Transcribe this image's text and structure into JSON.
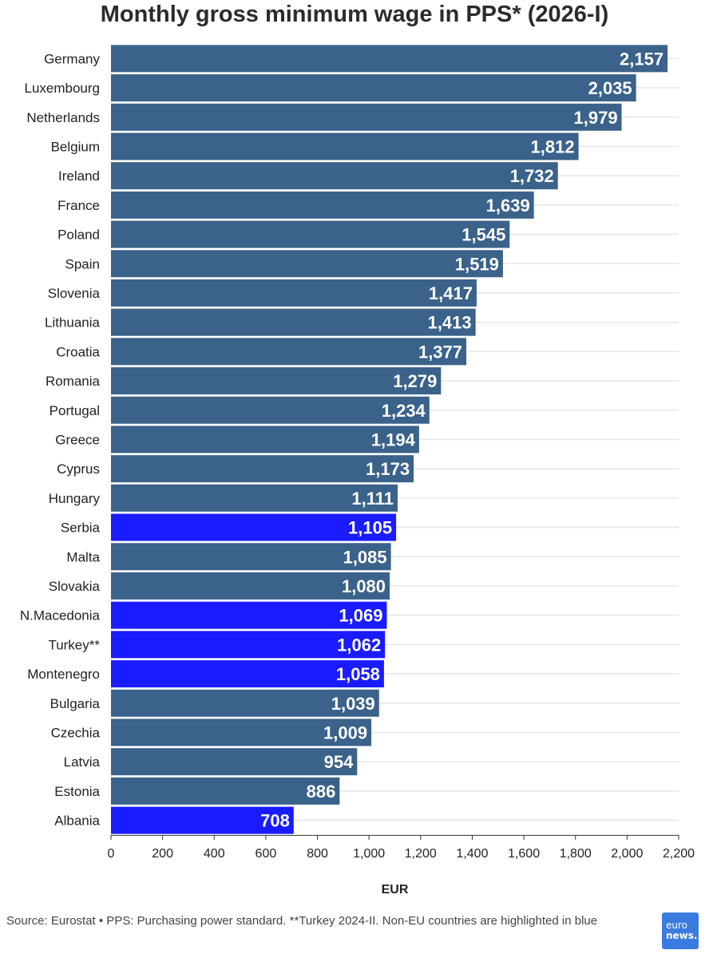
{
  "chart_data": {
    "type": "bar",
    "orientation": "horizontal",
    "title": "Monthly gross minimum wage in PPS* (2026-I)",
    "xlabel": "EUR",
    "xlim": [
      0,
      2200
    ],
    "xticks": [
      0,
      200,
      400,
      600,
      800,
      1000,
      1200,
      1400,
      1600,
      1800,
      2000,
      2200
    ],
    "xtick_labels": [
      "0",
      "200",
      "400",
      "600",
      "800",
      "1,000",
      "1,200",
      "1,400",
      "1,600",
      "1,800",
      "2,000",
      "2,200"
    ],
    "grid": true,
    "categories": [
      "Germany",
      "Luxembourg",
      "Netherlands",
      "Belgium",
      "Ireland",
      "France",
      "Poland",
      "Spain",
      "Slovenia",
      "Lithuania",
      "Croatia",
      "Romania",
      "Portugal",
      "Greece",
      "Cyprus",
      "Hungary",
      "Serbia",
      "Malta",
      "Slovakia",
      "N.Macedonia",
      "Turkey**",
      "Montenegro",
      "Bulgaria",
      "Czechia",
      "Latvia",
      "Estonia",
      "Albania"
    ],
    "values": [
      2157,
      2035,
      1979,
      1812,
      1732,
      1639,
      1545,
      1519,
      1417,
      1413,
      1377,
      1279,
      1234,
      1194,
      1173,
      1111,
      1105,
      1085,
      1080,
      1069,
      1062,
      1058,
      1039,
      1009,
      954,
      886,
      708
    ],
    "value_labels": [
      "2,157",
      "2,035",
      "1,979",
      "1,812",
      "1,732",
      "1,639",
      "1,545",
      "1,519",
      "1,417",
      "1,413",
      "1,377",
      "1,279",
      "1,234",
      "1,194",
      "1,173",
      "1,111",
      "1,105",
      "1,085",
      "1,080",
      "1,069",
      "1,062",
      "1,058",
      "1,039",
      "1,009",
      "954",
      "886",
      "708"
    ],
    "highlighted": [
      "Serbia",
      "N.Macedonia",
      "Turkey**",
      "Montenegro",
      "Albania"
    ],
    "colors": {
      "eu": "#3a628a",
      "non_eu": "#1b1bff",
      "grid": "#e6e6e6",
      "axis": "#333333"
    }
  },
  "footer": {
    "source": "Source: Eurostat • PPS: Purchasing power standard. **Turkey 2024-II. Non-EU countries are highlighted in blue",
    "logo_line1": "euro",
    "logo_line2": "news."
  }
}
